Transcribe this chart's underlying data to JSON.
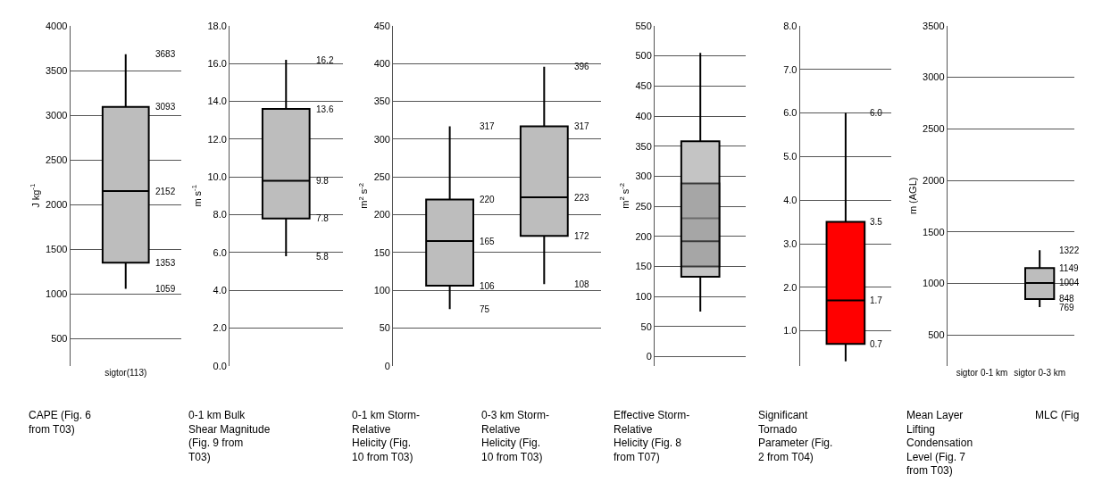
{
  "chart_data": [
    {
      "type": "box",
      "categories": [
        "sigtor(113)"
      ],
      "ylabel": "J kg$^{-1}$",
      "ylim": [
        200,
        4000
      ],
      "yticks": [
        500,
        1000,
        1500,
        2000,
        2500,
        3000,
        3500,
        4000
      ],
      "grid": "y",
      "color": "#bdbdbd",
      "boxes": [
        {
          "low": 1059,
          "q1": 1353,
          "median": 2152,
          "q3": 3093,
          "high": 3683
        }
      ],
      "value_labels": [
        [
          "1059",
          "1353",
          "2152",
          "3093",
          "3683"
        ]
      ],
      "annotations": [
        "CAPE (Fig. 6 from T03)"
      ]
    },
    {
      "type": "box",
      "categories": [
        null
      ],
      "ylabel": "m s$^{-1}$",
      "ylim": [
        0,
        18
      ],
      "yticks": [
        {
          "value": 0,
          "label": "0.0"
        },
        {
          "value": 2,
          "label": "2.0"
        },
        {
          "value": 4,
          "label": "4.0"
        },
        {
          "value": 6,
          "label": "6.0"
        },
        {
          "value": 8,
          "label": "8.0"
        },
        {
          "value": 10,
          "label": "10.0"
        },
        {
          "value": 12,
          "label": "12.0"
        },
        {
          "value": 14,
          "label": "14.0"
        },
        {
          "value": 16,
          "label": "16.0"
        },
        {
          "value": 18,
          "label": "18.0"
        }
      ],
      "grid": "y",
      "color": "#bdbdbd",
      "value_labels": [
        [
          "5.8",
          "7.8",
          "9.8",
          "13.6",
          "16.2"
        ]
      ],
      "boxes": [
        {
          "low": 5.8,
          "q1": 7.8,
          "median": 9.8,
          "q3": 13.6,
          "high": 16.2
        }
      ],
      "annotations": [
        "0-1 km Bulk Shear Magnitude (Fig. 9 from T03)"
      ]
    },
    {
      "type": "box",
      "categories": [
        null,
        null
      ],
      "ylabel": "m$^{2}$ s$^{-2}$",
      "ylim": [
        0,
        450
      ],
      "yticks": [
        0,
        50,
        100,
        150,
        200,
        250,
        300,
        350,
        400,
        450
      ],
      "grid": "y",
      "color": "#bdbdbd",
      "value_labels": [
        [
          "75",
          "106",
          "165",
          "220",
          "317"
        ],
        [
          "108",
          "172",
          "223",
          "317",
          "396"
        ]
      ],
      "boxes": [
        {
          "low": 75,
          "q1": 106,
          "median": 165,
          "q3": 220,
          "high": 317
        },
        {
          "low": 108,
          "q1": 172,
          "median": 223,
          "q3": 317,
          "high": 396
        }
      ],
      "annotations": [
        "0-1 km Storm-Relative Helicity (Fig. 10 from T03)",
        "0-3 km Storm-Relative Helicity (Fig. 10 from T03)"
      ]
    },
    {
      "type": "box",
      "categories": [
        null
      ],
      "ylabel": "m$^{2}$ s$^{-2}$",
      "ylim": [
        -15,
        550
      ],
      "yticks": [
        0,
        50,
        100,
        150,
        200,
        250,
        300,
        350,
        400,
        450,
        500,
        550
      ],
      "grid": "y",
      "series": [
        {
          "color": "#c4c4c4",
          "boxes": [
            {
              "low": 75,
              "q1": 133,
              "median": 230,
              "q3": 358,
              "high": 505
            }
          ]
        },
        {
          "color": "#9a9a9a",
          "boxes": [
            {
              "low": 150,
              "q1": 150,
              "median": 192,
              "q3": 288,
              "high": 288
            }
          ]
        }
      ],
      "annotations": [
        "Effective Storm-Relative Helicity (Fig. 8 from T07)"
      ]
    },
    {
      "type": "box",
      "categories": [
        null
      ],
      "ylim": [
        0.2,
        8.0
      ],
      "yticks": [
        {
          "value": 1,
          "label": "1.0"
        },
        {
          "value": 2,
          "label": "2.0"
        },
        {
          "value": 3,
          "label": "3.0"
        },
        {
          "value": 4,
          "label": "4.0"
        },
        {
          "value": 5,
          "label": "5.0"
        },
        {
          "value": 6,
          "label": "6.0"
        },
        {
          "value": 7,
          "label": "7.0"
        },
        {
          "value": 8,
          "label": "8.0"
        }
      ],
      "grid": "y",
      "color": "#ff0000",
      "boxes": [
        {
          "low": 0.3,
          "q1": 0.7,
          "median": 1.7,
          "q3": 3.5,
          "high": 6.0
        }
      ],
      "value_labels": [
        [
          null,
          "0.7",
          "1.7",
          "3.5",
          "6.0"
        ]
      ],
      "annotations": [
        "Significant Tornado Parameter (Fig. 2 from T04)"
      ]
    },
    {
      "type": "box",
      "categories": [
        "sigtor 0-1 km",
        "sigtor 0-3 km"
      ],
      "ylabel": "m (AGL)",
      "ylim": [
        200,
        3500
      ],
      "yticks": [
        500,
        1000,
        1500,
        2000,
        2500,
        3000,
        3500
      ],
      "grid": "y",
      "color": "#bdbdbd",
      "value_labels": [
        null,
        [
          "769",
          "848",
          "1004",
          "1149",
          "1322"
        ]
      ],
      "boxes": [
        null,
        {
          "low": 769,
          "q1": 848,
          "median": 1004,
          "q3": 1149,
          "high": 1322
        }
      ],
      "annotations": [
        "Mean Layer Lifting Condensation Level (Fig. 7 from T03)",
        "MLC (Fig"
      ]
    }
  ]
}
